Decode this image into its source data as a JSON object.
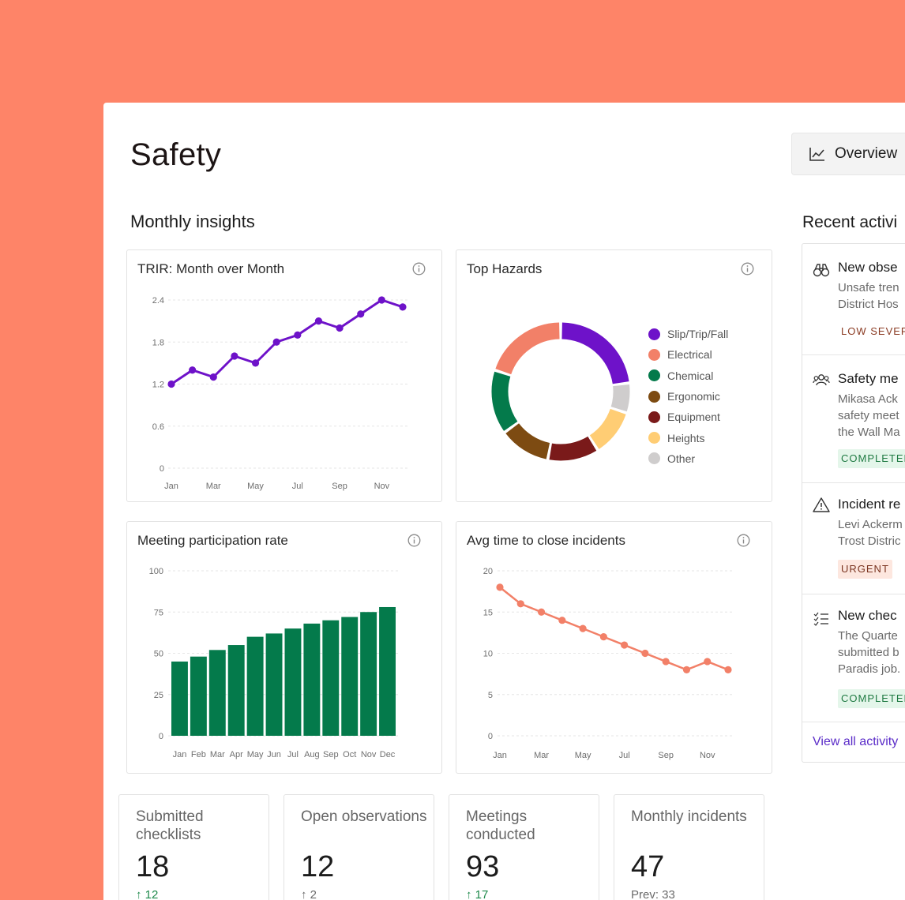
{
  "page": {
    "title": "Safety",
    "overview_label": "Overview",
    "section_title": "Monthly insights",
    "recent_title": "Recent activi"
  },
  "colors": {
    "background": "#fe8468",
    "purple": "#6e12c9",
    "green": "#047a4b",
    "salmon": "#f28068"
  },
  "cards": {
    "trir_title": "TRIR: Month over Month",
    "hazards_title": "Top Hazards",
    "meeting_title": "Meeting participation rate",
    "avg_title": "Avg time to close incidents",
    "info_icon": "info-icon"
  },
  "chart_data": [
    {
      "type": "line",
      "title": "TRIR: Month over Month",
      "x": [
        "Jan",
        "Feb",
        "Mar",
        "Apr",
        "May",
        "Jun",
        "Jul",
        "Aug",
        "Sep",
        "Oct",
        "Nov",
        "Dec"
      ],
      "x_tick_labels": [
        "Jan",
        "Mar",
        "May",
        "Jul",
        "Sep",
        "Nov"
      ],
      "y_ticks": [
        "0",
        "0.6",
        "1.2",
        "1.8",
        "2.4"
      ],
      "ylim": [
        0,
        2.4
      ],
      "grid": true,
      "series": [
        {
          "values": [
            1.2,
            1.4,
            1.3,
            1.6,
            1.5,
            1.8,
            1.9,
            2.1,
            2.0,
            2.2,
            2.4,
            2.3
          ],
          "color": "#6e12c9"
        }
      ]
    },
    {
      "type": "pie",
      "title": "Top Hazards",
      "legend_position": "right",
      "slices": [
        {
          "label": "Slip/Trip/Fall",
          "value": 23,
          "color": "#6e12c9"
        },
        {
          "label": "Other",
          "value": 7,
          "color": "#cfcdcd"
        },
        {
          "label": "Heights",
          "value": 11,
          "color": "#ffcd74"
        },
        {
          "label": "Equipment",
          "value": 12,
          "color": "#7a1a1a"
        },
        {
          "label": "Ergonomic",
          "value": 12,
          "color": "#7d4b12"
        },
        {
          "label": "Chemical",
          "value": 15,
          "color": "#047a4b"
        },
        {
          "label": "Electrical",
          "value": 20,
          "color": "#f28068"
        }
      ],
      "legend_order": [
        "Slip/Trip/Fall",
        "Electrical",
        "Chemical",
        "Ergonomic",
        "Equipment",
        "Heights",
        "Other"
      ]
    },
    {
      "type": "bar",
      "title": "Meeting participation rate",
      "categories": [
        "Jan",
        "Feb",
        "Mar",
        "Apr",
        "May",
        "Jun",
        "Jul",
        "Aug",
        "Sep",
        "Oct",
        "Nov",
        "Dec"
      ],
      "values": [
        45,
        48,
        52,
        55,
        60,
        62,
        65,
        68,
        70,
        72,
        75,
        78
      ],
      "y_ticks": [
        "0",
        "25",
        "50",
        "75",
        "100"
      ],
      "ylim": [
        0,
        100
      ],
      "grid": true,
      "color": "#047a4b"
    },
    {
      "type": "line",
      "title": "Avg time to close incidents",
      "x": [
        "Jan",
        "Feb",
        "Mar",
        "Apr",
        "May",
        "Jun",
        "Jul",
        "Aug",
        "Sep",
        "Oct",
        "Nov",
        "Dec"
      ],
      "x_tick_labels": [
        "Jan",
        "Mar",
        "May",
        "Jul",
        "Sep",
        "Nov"
      ],
      "y_ticks": [
        "0",
        "5",
        "10",
        "15",
        "20"
      ],
      "ylim": [
        0,
        20
      ],
      "grid": true,
      "series": [
        {
          "values": [
            18,
            16,
            15,
            14,
            13,
            12,
            11,
            10,
            9,
            8,
            9,
            8
          ],
          "color": "#f28068"
        }
      ]
    }
  ],
  "stats": [
    {
      "label": "Submitted checklists",
      "value": "18",
      "delta": "↑ 12"
    },
    {
      "label": "Open observations",
      "value": "12",
      "delta": "↑ 2"
    },
    {
      "label": "Meetings conducted",
      "value": "93",
      "delta": "↑ 17"
    },
    {
      "label": "Monthly incidents",
      "value": "47",
      "delta": "Prev: 33"
    }
  ],
  "activity": {
    "items": [
      {
        "icon": "binoculars-icon",
        "title": "New obse",
        "desc": "Unsafe tren\nDistrict Hos",
        "badge": "LOW SEVER"
      },
      {
        "icon": "people-icon",
        "title": "Safety me",
        "desc": "Mikasa Ack\nsafety meet\nthe Wall Ma",
        "badge": "COMPLETED"
      },
      {
        "icon": "warning-icon",
        "title": "Incident re",
        "desc": "Levi Ackerm\nTrost Distric",
        "badge": "URGENT"
      },
      {
        "icon": "checklist-icon",
        "title": "New chec",
        "desc": "The Quarte\nsubmitted b\nParadis job.",
        "badge": "COMPLETED"
      }
    ],
    "view_all": "View all activity"
  }
}
